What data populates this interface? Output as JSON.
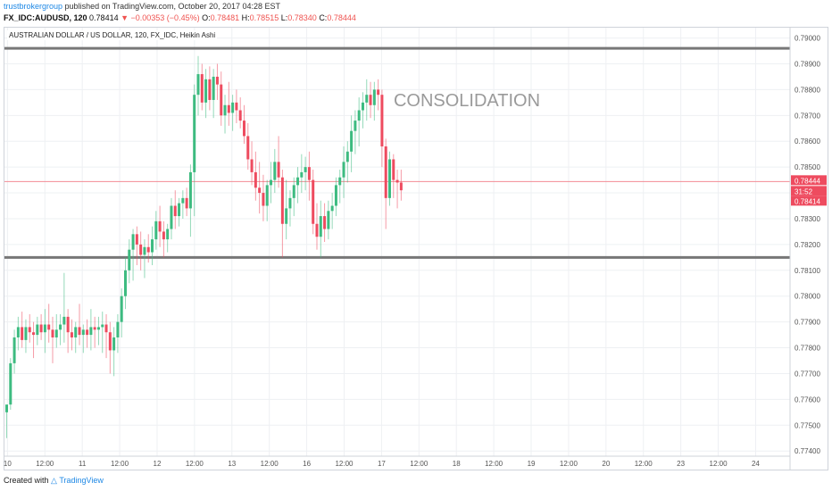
{
  "header": {
    "author": "trustbrokergroup",
    "published": " published on TradingView.com, October 20, 2017 04:28 EST",
    "symbol": "FX_IDC:AUDUSD, 120",
    "last": "0.78414",
    "change": "▼ −0.00353 (−0.45%)",
    "ohlc": {
      "o_label": "O:",
      "o": "0.78481",
      "h_label": "H:",
      "h": "0.78515",
      "l_label": "L:",
      "l": "0.78340",
      "c_label": "C:",
      "c": "0.78444"
    }
  },
  "series_label": "AUSTRALIAN DOLLAR / US DOLLAR, 120, FX_IDC, Heikin Ashi",
  "footer": {
    "created": "Created with",
    "brand": "TradingView"
  },
  "colors": {
    "up": "#3dbb80",
    "down": "#ee4b5f",
    "grid": "#eef0f3",
    "axis_text": "#555555",
    "level_line": "#777777",
    "price_line": "#f28b95",
    "annotation": "#9a9a9a"
  },
  "chart_data": {
    "type": "candlestick",
    "style": "Heikin Ashi",
    "title": "AUSTRALIAN DOLLAR / US DOLLAR, 120, FX_IDC, Heikin Ashi",
    "annotation": "CONSOLIDATION",
    "ylim": [
      0.7738,
      0.7904
    ],
    "y_ticks": [
      "0.79000",
      "0.78900",
      "0.78800",
      "0.78700",
      "0.78600",
      "0.78500",
      "0.78400",
      "0.78300",
      "0.78200",
      "0.78100",
      "0.78000",
      "0.77900",
      "0.77800",
      "0.77700",
      "0.77600",
      "0.77500",
      "0.77400"
    ],
    "x_ticks": [
      "10",
      "12:00",
      "11",
      "12:00",
      "12",
      "12:00",
      "13",
      "12:00",
      "16",
      "12:00",
      "17",
      "12:00",
      "18",
      "12:00",
      "19",
      "12:00",
      "20",
      "12:00",
      "23",
      "12:00",
      "24"
    ],
    "bar_period": "2h",
    "levels": [
      0.7896,
      0.7815
    ],
    "current_price": 0.78444,
    "price_labels": [
      "0.78444",
      "31:52",
      "0.78414"
    ],
    "grid": true,
    "candles": [
      {
        "o": 0.7755,
        "h": 0.7757,
        "l": 0.7745,
        "c": 0.7758
      },
      {
        "o": 0.7758,
        "h": 0.7776,
        "l": 0.7756,
        "c": 0.7774
      },
      {
        "o": 0.7774,
        "h": 0.7787,
        "l": 0.777,
        "c": 0.7784
      },
      {
        "o": 0.7784,
        "h": 0.7792,
        "l": 0.7779,
        "c": 0.7788
      },
      {
        "o": 0.7788,
        "h": 0.7794,
        "l": 0.778,
        "c": 0.7783
      },
      {
        "o": 0.7783,
        "h": 0.7791,
        "l": 0.7778,
        "c": 0.7788
      },
      {
        "o": 0.7788,
        "h": 0.7793,
        "l": 0.7782,
        "c": 0.7786
      },
      {
        "o": 0.7786,
        "h": 0.779,
        "l": 0.7776,
        "c": 0.7785
      },
      {
        "o": 0.7785,
        "h": 0.7792,
        "l": 0.7781,
        "c": 0.7789
      },
      {
        "o": 0.7789,
        "h": 0.7793,
        "l": 0.7783,
        "c": 0.7786
      },
      {
        "o": 0.7786,
        "h": 0.7795,
        "l": 0.7778,
        "c": 0.7789
      },
      {
        "o": 0.7789,
        "h": 0.7797,
        "l": 0.7782,
        "c": 0.7787
      },
      {
        "o": 0.7787,
        "h": 0.7792,
        "l": 0.7774,
        "c": 0.7784
      },
      {
        "o": 0.7784,
        "h": 0.7793,
        "l": 0.778,
        "c": 0.7787
      },
      {
        "o": 0.7787,
        "h": 0.7793,
        "l": 0.7781,
        "c": 0.7789
      },
      {
        "o": 0.7789,
        "h": 0.7809,
        "l": 0.7782,
        "c": 0.7792
      },
      {
        "o": 0.7792,
        "h": 0.7795,
        "l": 0.7778,
        "c": 0.7786
      },
      {
        "o": 0.7786,
        "h": 0.7791,
        "l": 0.7779,
        "c": 0.7784
      },
      {
        "o": 0.7784,
        "h": 0.779,
        "l": 0.7778,
        "c": 0.7788
      },
      {
        "o": 0.7788,
        "h": 0.7797,
        "l": 0.7781,
        "c": 0.7785
      },
      {
        "o": 0.7785,
        "h": 0.7789,
        "l": 0.7778,
        "c": 0.7787
      },
      {
        "o": 0.7787,
        "h": 0.7791,
        "l": 0.778,
        "c": 0.7785
      },
      {
        "o": 0.7785,
        "h": 0.7795,
        "l": 0.7779,
        "c": 0.7788
      },
      {
        "o": 0.7788,
        "h": 0.7792,
        "l": 0.778,
        "c": 0.7787
      },
      {
        "o": 0.7787,
        "h": 0.7792,
        "l": 0.7781,
        "c": 0.7788
      },
      {
        "o": 0.7788,
        "h": 0.7794,
        "l": 0.7778,
        "c": 0.7789
      },
      {
        "o": 0.7789,
        "h": 0.7793,
        "l": 0.7776,
        "c": 0.7786
      },
      {
        "o": 0.7786,
        "h": 0.779,
        "l": 0.777,
        "c": 0.7779
      },
      {
        "o": 0.7779,
        "h": 0.7788,
        "l": 0.7769,
        "c": 0.7784
      },
      {
        "o": 0.7784,
        "h": 0.7793,
        "l": 0.7778,
        "c": 0.779
      },
      {
        "o": 0.779,
        "h": 0.7803,
        "l": 0.7784,
        "c": 0.78
      },
      {
        "o": 0.78,
        "h": 0.7815,
        "l": 0.7795,
        "c": 0.781
      },
      {
        "o": 0.781,
        "h": 0.7822,
        "l": 0.7805,
        "c": 0.7818
      },
      {
        "o": 0.7818,
        "h": 0.7826,
        "l": 0.7806,
        "c": 0.7824
      },
      {
        "o": 0.7824,
        "h": 0.7827,
        "l": 0.7812,
        "c": 0.782
      },
      {
        "o": 0.782,
        "h": 0.7825,
        "l": 0.781,
        "c": 0.7816
      },
      {
        "o": 0.7816,
        "h": 0.7822,
        "l": 0.7807,
        "c": 0.7819
      },
      {
        "o": 0.7819,
        "h": 0.7824,
        "l": 0.7813,
        "c": 0.7817
      },
      {
        "o": 0.7817,
        "h": 0.7827,
        "l": 0.7812,
        "c": 0.7822
      },
      {
        "o": 0.7822,
        "h": 0.7833,
        "l": 0.7818,
        "c": 0.7829
      },
      {
        "o": 0.7829,
        "h": 0.7835,
        "l": 0.7819,
        "c": 0.7825
      },
      {
        "o": 0.7825,
        "h": 0.7829,
        "l": 0.7815,
        "c": 0.7822
      },
      {
        "o": 0.7822,
        "h": 0.7828,
        "l": 0.7817,
        "c": 0.7826
      },
      {
        "o": 0.7826,
        "h": 0.7838,
        "l": 0.7822,
        "c": 0.7835
      },
      {
        "o": 0.7835,
        "h": 0.7841,
        "l": 0.7826,
        "c": 0.7831
      },
      {
        "o": 0.7831,
        "h": 0.7838,
        "l": 0.7827,
        "c": 0.7836
      },
      {
        "o": 0.7836,
        "h": 0.7841,
        "l": 0.783,
        "c": 0.7838
      },
      {
        "o": 0.7838,
        "h": 0.7842,
        "l": 0.7831,
        "c": 0.7834
      },
      {
        "o": 0.7834,
        "h": 0.7851,
        "l": 0.7823,
        "c": 0.7848
      },
      {
        "o": 0.7848,
        "h": 0.7882,
        "l": 0.7831,
        "c": 0.7878
      },
      {
        "o": 0.7878,
        "h": 0.7893,
        "l": 0.787,
        "c": 0.7886
      },
      {
        "o": 0.7886,
        "h": 0.789,
        "l": 0.7872,
        "c": 0.7875
      },
      {
        "o": 0.7875,
        "h": 0.7888,
        "l": 0.7869,
        "c": 0.7884
      },
      {
        "o": 0.7884,
        "h": 0.7889,
        "l": 0.7872,
        "c": 0.7876
      },
      {
        "o": 0.7876,
        "h": 0.7888,
        "l": 0.7869,
        "c": 0.7885
      },
      {
        "o": 0.7885,
        "h": 0.789,
        "l": 0.7876,
        "c": 0.7882
      },
      {
        "o": 0.7882,
        "h": 0.7887,
        "l": 0.7866,
        "c": 0.787
      },
      {
        "o": 0.787,
        "h": 0.7878,
        "l": 0.7863,
        "c": 0.7874
      },
      {
        "o": 0.7874,
        "h": 0.7883,
        "l": 0.7866,
        "c": 0.7871
      },
      {
        "o": 0.7871,
        "h": 0.7878,
        "l": 0.7864,
        "c": 0.7875
      },
      {
        "o": 0.7875,
        "h": 0.788,
        "l": 0.7867,
        "c": 0.7872
      },
      {
        "o": 0.7872,
        "h": 0.7877,
        "l": 0.7865,
        "c": 0.7868
      },
      {
        "o": 0.7868,
        "h": 0.7874,
        "l": 0.7859,
        "c": 0.7862
      },
      {
        "o": 0.7862,
        "h": 0.7867,
        "l": 0.7849,
        "c": 0.7853
      },
      {
        "o": 0.7853,
        "h": 0.786,
        "l": 0.7843,
        "c": 0.7848
      },
      {
        "o": 0.7848,
        "h": 0.7856,
        "l": 0.7837,
        "c": 0.7842
      },
      {
        "o": 0.7842,
        "h": 0.7852,
        "l": 0.7832,
        "c": 0.784
      },
      {
        "o": 0.784,
        "h": 0.7847,
        "l": 0.7829,
        "c": 0.7835
      },
      {
        "o": 0.7835,
        "h": 0.7845,
        "l": 0.7829,
        "c": 0.7843
      },
      {
        "o": 0.7843,
        "h": 0.7852,
        "l": 0.7836,
        "c": 0.7845
      },
      {
        "o": 0.7845,
        "h": 0.7857,
        "l": 0.784,
        "c": 0.7852
      },
      {
        "o": 0.7852,
        "h": 0.7862,
        "l": 0.7842,
        "c": 0.7846
      },
      {
        "o": 0.7846,
        "h": 0.7849,
        "l": 0.7815,
        "c": 0.7828
      },
      {
        "o": 0.7828,
        "h": 0.7845,
        "l": 0.7822,
        "c": 0.7834
      },
      {
        "o": 0.7834,
        "h": 0.7841,
        "l": 0.7827,
        "c": 0.7838
      },
      {
        "o": 0.7838,
        "h": 0.7846,
        "l": 0.7831,
        "c": 0.7843
      },
      {
        "o": 0.7843,
        "h": 0.785,
        "l": 0.7836,
        "c": 0.7846
      },
      {
        "o": 0.7846,
        "h": 0.7855,
        "l": 0.784,
        "c": 0.7848
      },
      {
        "o": 0.7848,
        "h": 0.7854,
        "l": 0.7841,
        "c": 0.785
      },
      {
        "o": 0.785,
        "h": 0.7856,
        "l": 0.7837,
        "c": 0.7845
      },
      {
        "o": 0.7845,
        "h": 0.7849,
        "l": 0.7824,
        "c": 0.7828
      },
      {
        "o": 0.7828,
        "h": 0.7836,
        "l": 0.7818,
        "c": 0.7823
      },
      {
        "o": 0.7823,
        "h": 0.7837,
        "l": 0.7815,
        "c": 0.7831
      },
      {
        "o": 0.7831,
        "h": 0.7836,
        "l": 0.7821,
        "c": 0.7826
      },
      {
        "o": 0.7826,
        "h": 0.7837,
        "l": 0.7822,
        "c": 0.7833
      },
      {
        "o": 0.7833,
        "h": 0.784,
        "l": 0.7826,
        "c": 0.7835
      },
      {
        "o": 0.7835,
        "h": 0.7846,
        "l": 0.7831,
        "c": 0.7843
      },
      {
        "o": 0.7843,
        "h": 0.7849,
        "l": 0.7836,
        "c": 0.7846
      },
      {
        "o": 0.7846,
        "h": 0.7858,
        "l": 0.7838,
        "c": 0.7852
      },
      {
        "o": 0.7852,
        "h": 0.786,
        "l": 0.7844,
        "c": 0.7856
      },
      {
        "o": 0.7856,
        "h": 0.787,
        "l": 0.7848,
        "c": 0.7864
      },
      {
        "o": 0.7864,
        "h": 0.7872,
        "l": 0.7855,
        "c": 0.7868
      },
      {
        "o": 0.7868,
        "h": 0.7877,
        "l": 0.7858,
        "c": 0.7872
      },
      {
        "o": 0.7872,
        "h": 0.7879,
        "l": 0.7865,
        "c": 0.7875
      },
      {
        "o": 0.7875,
        "h": 0.7884,
        "l": 0.7868,
        "c": 0.7878
      },
      {
        "o": 0.7878,
        "h": 0.7883,
        "l": 0.7869,
        "c": 0.7874
      },
      {
        "o": 0.7874,
        "h": 0.7883,
        "l": 0.7868,
        "c": 0.788
      },
      {
        "o": 0.788,
        "h": 0.7884,
        "l": 0.7872,
        "c": 0.7878
      },
      {
        "o": 0.7878,
        "h": 0.788,
        "l": 0.785,
        "c": 0.7858
      },
      {
        "o": 0.7858,
        "h": 0.7861,
        "l": 0.7826,
        "c": 0.7838
      },
      {
        "o": 0.7838,
        "h": 0.7856,
        "l": 0.7835,
        "c": 0.7853
      },
      {
        "o": 0.7853,
        "h": 0.7855,
        "l": 0.7838,
        "c": 0.7845
      },
      {
        "o": 0.7845,
        "h": 0.7849,
        "l": 0.7834,
        "c": 0.7844
      },
      {
        "o": 0.7844,
        "h": 0.7849,
        "l": 0.7837,
        "c": 0.7841
      }
    ]
  }
}
